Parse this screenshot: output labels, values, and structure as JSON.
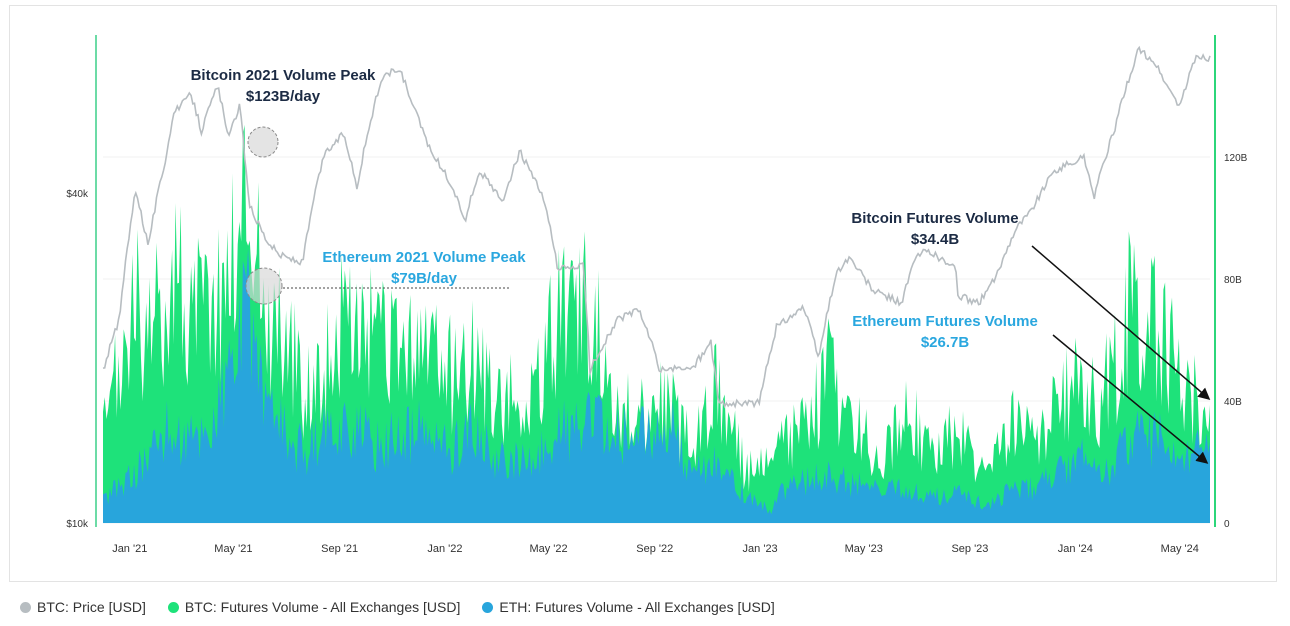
{
  "colors": {
    "btc_price": "#b7bdc1",
    "btc_volume": "#1ee27a",
    "eth_volume": "#28a5dc",
    "annotation_dark": "#1c2b44",
    "annotation_blue": "#2aa7df",
    "right_axis": "#2cd67a",
    "left_axis": "#3ccf88"
  },
  "legend": [
    {
      "label": "BTC: Price [USD]",
      "color": "#b7bdc1"
    },
    {
      "label": "BTC: Futures Volume - All Exchanges [USD]",
      "color": "#1ee27a"
    },
    {
      "label": "ETH: Futures Volume - All Exchanges [USD]",
      "color": "#28a5dc"
    }
  ],
  "annotations": {
    "btc_peak": {
      "line1": "Bitcoin 2021 Volume Peak",
      "line2": "$123B/day"
    },
    "eth_peak": {
      "line1": "Ethereum 2021 Volume Peak",
      "line2": "$79B/day"
    },
    "btc_now": {
      "line1": "Bitcoin Futures Volume",
      "line2": "$34.4B"
    },
    "eth_now": {
      "line1": "Ethereum Futures Volume",
      "line2": "$26.7B"
    }
  },
  "chart_data": {
    "type": "area",
    "x_tick_labels": [
      "Jan '21",
      "May '21",
      "Sep '21",
      "Jan '22",
      "May '22",
      "Sep '22",
      "Jan '23",
      "May '23",
      "Sep '23",
      "Jan '24",
      "May '24"
    ],
    "left_axis": {
      "tick_labels": [
        "$10k",
        "$40k"
      ],
      "scale": "log",
      "range": [
        10000,
        70000
      ]
    },
    "right_axis": {
      "tick_labels": [
        "0",
        "40B",
        "80B",
        "120B"
      ],
      "range": [
        0,
        160
      ]
    },
    "series": [
      {
        "name": "BTC: Price [USD]",
        "axis": "left",
        "unit": "USD",
        "points": [
          [
            "2020-12-01",
            19000
          ],
          [
            "2020-12-20",
            23500
          ],
          [
            "2021-01-08",
            40500
          ],
          [
            "2021-01-22",
            32000
          ],
          [
            "2021-02-10",
            45000
          ],
          [
            "2021-02-21",
            56000
          ],
          [
            "2021-03-13",
            60500
          ],
          [
            "2021-03-25",
            52000
          ],
          [
            "2021-04-13",
            63000
          ],
          [
            "2021-04-25",
            50000
          ],
          [
            "2021-05-08",
            58000
          ],
          [
            "2021-05-19",
            38000
          ],
          [
            "2021-06-08",
            33000
          ],
          [
            "2021-06-22",
            31000
          ],
          [
            "2021-07-20",
            29800
          ],
          [
            "2021-08-14",
            47000
          ],
          [
            "2021-09-06",
            51500
          ],
          [
            "2021-09-21",
            41000
          ],
          [
            "2021-10-20",
            65000
          ],
          [
            "2021-11-09",
            67500
          ],
          [
            "2021-11-28",
            56000
          ],
          [
            "2021-12-15",
            48000
          ],
          [
            "2022-01-10",
            41000
          ],
          [
            "2022-01-24",
            35500
          ],
          [
            "2022-02-10",
            44000
          ],
          [
            "2022-03-08",
            38500
          ],
          [
            "2022-03-29",
            47500
          ],
          [
            "2022-04-25",
            39000
          ],
          [
            "2022-05-12",
            29000
          ],
          [
            "2022-06-10",
            29500
          ],
          [
            "2022-06-18",
            19000
          ],
          [
            "2022-07-20",
            23500
          ],
          [
            "2022-08-14",
            24500
          ],
          [
            "2022-09-07",
            19000
          ],
          [
            "2022-10-15",
            19200
          ],
          [
            "2022-11-05",
            21300
          ],
          [
            "2022-11-14",
            16500
          ],
          [
            "2022-12-31",
            16550
          ],
          [
            "2023-01-20",
            22800
          ],
          [
            "2023-02-20",
            24800
          ],
          [
            "2023-03-10",
            20000
          ],
          [
            "2023-03-30",
            28500
          ],
          [
            "2023-04-14",
            30500
          ],
          [
            "2023-05-12",
            26500
          ],
          [
            "2023-06-14",
            25200
          ],
          [
            "2023-06-30",
            30500
          ],
          [
            "2023-07-14",
            31500
          ],
          [
            "2023-08-16",
            29000
          ],
          [
            "2023-08-18",
            26000
          ],
          [
            "2023-09-11",
            25200
          ],
          [
            "2023-10-01",
            28000
          ],
          [
            "2023-10-24",
            34500
          ],
          [
            "2023-11-10",
            37000
          ],
          [
            "2023-12-08",
            44000
          ],
          [
            "2024-01-11",
            46500
          ],
          [
            "2024-01-23",
            39500
          ],
          [
            "2024-02-15",
            52000
          ],
          [
            "2024-03-14",
            73000
          ],
          [
            "2024-04-01",
            69500
          ],
          [
            "2024-04-18",
            62000
          ],
          [
            "2024-05-01",
            57500
          ],
          [
            "2024-05-20",
            71000
          ],
          [
            "2024-06-05",
            70500
          ]
        ]
      },
      {
        "name": "BTC: Futures Volume - All Exchanges [USD]",
        "axis": "right",
        "unit": "B USD",
        "points": [
          [
            "2020-12-01",
            30
          ],
          [
            "2021-01-08",
            78
          ],
          [
            "2021-01-20",
            60
          ],
          [
            "2021-02-10",
            80
          ],
          [
            "2021-02-22",
            95
          ],
          [
            "2021-03-10",
            72
          ],
          [
            "2021-04-18",
            82
          ],
          [
            "2021-05-12",
            110
          ],
          [
            "2021-05-19",
            123
          ],
          [
            "2021-06-10",
            68
          ],
          [
            "2021-06-22",
            72
          ],
          [
            "2021-07-20",
            48
          ],
          [
            "2021-08-14",
            55
          ],
          [
            "2021-09-07",
            72
          ],
          [
            "2021-10-20",
            62
          ],
          [
            "2021-11-10",
            58
          ],
          [
            "2021-12-04",
            64
          ],
          [
            "2022-01-10",
            52
          ],
          [
            "2022-01-24",
            60
          ],
          [
            "2022-03-01",
            45
          ],
          [
            "2022-04-10",
            40
          ],
          [
            "2022-05-12",
            72
          ],
          [
            "2022-06-18",
            75
          ],
          [
            "2022-07-20",
            42
          ],
          [
            "2022-08-15",
            38
          ],
          [
            "2022-09-15",
            44
          ],
          [
            "2022-10-15",
            25
          ],
          [
            "2022-11-09",
            52
          ],
          [
            "2022-12-15",
            18
          ],
          [
            "2023-01-14",
            20
          ],
          [
            "2023-01-22",
            28
          ],
          [
            "2023-02-20",
            32
          ],
          [
            "2023-03-12",
            45
          ],
          [
            "2023-03-17",
            55
          ],
          [
            "2023-04-14",
            36
          ],
          [
            "2023-05-20",
            24
          ],
          [
            "2023-06-22",
            40
          ],
          [
            "2023-07-15",
            25
          ],
          [
            "2023-08-18",
            32
          ],
          [
            "2023-09-20",
            16
          ],
          [
            "2023-10-24",
            38
          ],
          [
            "2023-11-15",
            28
          ],
          [
            "2023-12-08",
            40
          ],
          [
            "2024-01-11",
            52
          ],
          [
            "2024-01-25",
            40
          ],
          [
            "2024-02-28",
            65
          ],
          [
            "2024-03-05",
            85
          ],
          [
            "2024-03-20",
            70
          ],
          [
            "2024-04-13",
            68
          ],
          [
            "2024-05-01",
            50
          ],
          [
            "2024-05-20",
            46
          ],
          [
            "2024-06-05",
            34.4
          ]
        ]
      },
      {
        "name": "ETH: Futures Volume - All Exchanges [USD]",
        "axis": "right",
        "unit": "B USD",
        "points": [
          [
            "2020-12-01",
            8
          ],
          [
            "2021-01-10",
            18
          ],
          [
            "2021-02-10",
            32
          ],
          [
            "2021-03-10",
            28
          ],
          [
            "2021-04-10",
            35
          ],
          [
            "2021-05-12",
            68
          ],
          [
            "2021-05-19",
            79
          ],
          [
            "2021-06-08",
            38
          ],
          [
            "2021-07-20",
            25
          ],
          [
            "2021-08-14",
            30
          ],
          [
            "2021-09-07",
            35
          ],
          [
            "2021-10-20",
            26
          ],
          [
            "2021-11-10",
            30
          ],
          [
            "2021-12-04",
            32
          ],
          [
            "2022-01-10",
            25
          ],
          [
            "2022-01-24",
            34
          ],
          [
            "2022-03-01",
            22
          ],
          [
            "2022-04-10",
            20
          ],
          [
            "2022-05-12",
            32
          ],
          [
            "2022-06-18",
            34
          ],
          [
            "2022-07-20",
            30
          ],
          [
            "2022-08-15",
            33
          ],
          [
            "2022-09-15",
            36
          ],
          [
            "2022-10-15",
            16
          ],
          [
            "2022-11-09",
            22
          ],
          [
            "2022-12-15",
            9
          ],
          [
            "2023-01-05",
            6
          ],
          [
            "2023-01-14",
            4
          ],
          [
            "2023-01-22",
            10
          ],
          [
            "2023-02-20",
            14
          ],
          [
            "2023-03-12",
            16
          ],
          [
            "2023-03-17",
            18
          ],
          [
            "2023-04-14",
            14
          ],
          [
            "2023-05-20",
            11
          ],
          [
            "2023-06-22",
            12
          ],
          [
            "2023-07-15",
            9
          ],
          [
            "2023-08-18",
            10
          ],
          [
            "2023-09-20",
            6
          ],
          [
            "2023-10-24",
            12
          ],
          [
            "2023-11-15",
            12
          ],
          [
            "2023-12-08",
            16
          ],
          [
            "2024-01-11",
            22
          ],
          [
            "2024-01-25",
            16
          ],
          [
            "2024-02-28",
            25
          ],
          [
            "2024-03-05",
            34
          ],
          [
            "2024-03-20",
            30
          ],
          [
            "2024-04-13",
            28
          ],
          [
            "2024-05-01",
            20
          ],
          [
            "2024-05-20",
            24
          ],
          [
            "2024-06-05",
            26.7
          ]
        ]
      }
    ]
  }
}
